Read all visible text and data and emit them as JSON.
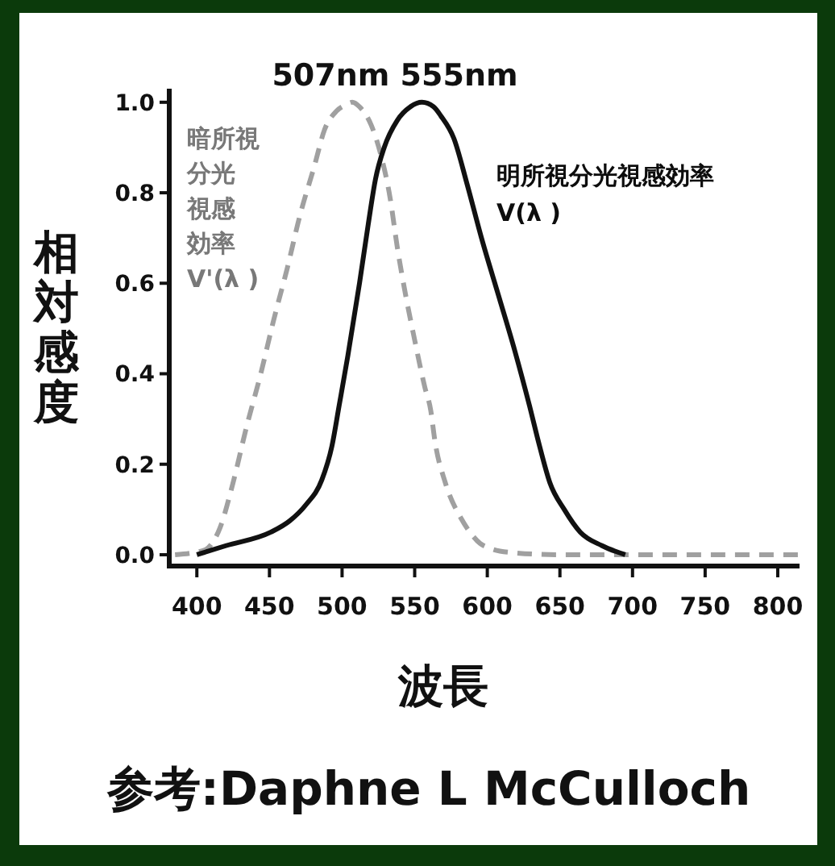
{
  "chart_data": {
    "type": "line",
    "title": "507nm 555nm",
    "xlabel": "波長",
    "ylabel": "相対感度",
    "annotations": [
      "参考:Daphne L McCulloch"
    ],
    "xlim": [
      381,
      815
    ],
    "xticks": [
      400,
      450,
      500,
      550,
      600,
      650,
      700,
      750,
      800
    ],
    "ylim": [
      -0.025,
      1.03
    ],
    "yticks": [
      {
        "value": 0,
        "label": "0.0"
      },
      0.2,
      0.4,
      0.6,
      0.8,
      {
        "value": 1,
        "label": "1.0"
      }
    ],
    "series": [
      {
        "name": "暗所視分光視感効率\nV'(λ )",
        "color": "#a0a0a0",
        "line_style": "dashed",
        "x": [
          385,
          405,
          416,
          425,
          434,
          444,
          453,
          462,
          471,
          481,
          488,
          496,
          503,
          507,
          512,
          520,
          527,
          533,
          538,
          544,
          549,
          557,
          561,
          564,
          571,
          582,
          588,
          595,
          602,
          616,
          650,
          700,
          750,
          800,
          815
        ],
        "values": [
          0,
          0.01,
          0.06,
          0.16,
          0.28,
          0.4,
          0.52,
          0.63,
          0.75,
          0.86,
          0.94,
          0.98,
          0.995,
          1.0,
          0.99,
          0.95,
          0.88,
          0.79,
          0.68,
          0.57,
          0.49,
          0.37,
          0.32,
          0.25,
          0.16,
          0.08,
          0.05,
          0.025,
          0.014,
          0.005,
          0,
          0,
          0,
          0,
          0
        ]
      },
      {
        "name": "明所視分光視感効率\nV(λ )",
        "color": "#111111",
        "line_style": "solid",
        "x": [
          400,
          420,
          451,
          464,
          475,
          486,
          493,
          498,
          504,
          512,
          518,
          523,
          529,
          538,
          547,
          555,
          563,
          568,
          577,
          586,
          596,
          608,
          619,
          629,
          636,
          643,
          653,
          664,
          679,
          695
        ],
        "values": [
          0,
          0.02,
          0.05,
          0.075,
          0.11,
          0.165,
          0.24,
          0.33,
          0.44,
          0.6,
          0.73,
          0.83,
          0.9,
          0.96,
          0.99,
          1.0,
          0.99,
          0.97,
          0.92,
          0.82,
          0.7,
          0.57,
          0.45,
          0.33,
          0.24,
          0.16,
          0.1,
          0.05,
          0.02,
          0
        ]
      }
    ]
  }
}
